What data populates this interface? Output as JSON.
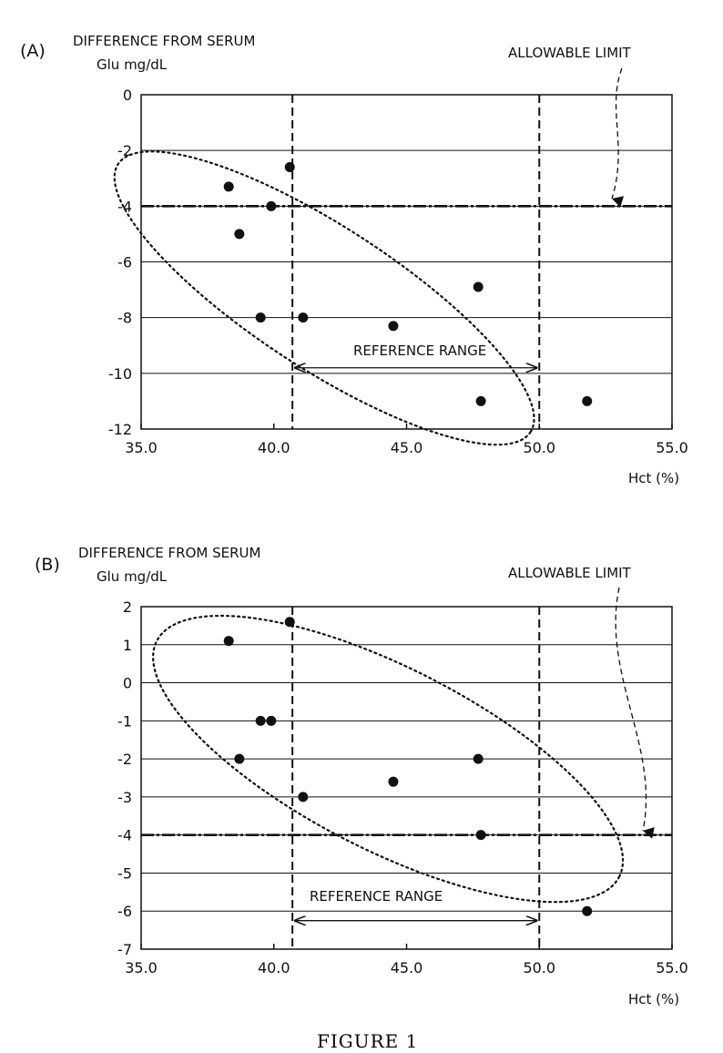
{
  "figure_caption": "FIGURE 1",
  "chart_data": [
    {
      "panel_label": "(A)",
      "type": "scatter",
      "ylabel_line1": "DIFFERENCE FROM SERUM",
      "ylabel_line2": "Glu mg/dL",
      "xlabel": "Hct (%)",
      "xlim": [
        35.0,
        55.0
      ],
      "ylim": [
        -12,
        0
      ],
      "xticks": [
        "35.0",
        "40.0",
        "45.0",
        "50.0",
        "55.0"
      ],
      "xtick_values": [
        35,
        40,
        45,
        50,
        55
      ],
      "yticks": [
        "0",
        "-2",
        "-4",
        "-6",
        "-8",
        "-10",
        "-12"
      ],
      "ytick_values": [
        0,
        -2,
        -4,
        -6,
        -8,
        -10,
        -12
      ],
      "grid_y": true,
      "allowable_limit_label": "ALLOWABLE LIMIT",
      "allowable_limit": -4,
      "reference_range_label": "REFERENCE RANGE",
      "reference_range": [
        40.7,
        50.0
      ],
      "points": [
        {
          "x": 38.3,
          "y": -3.3
        },
        {
          "x": 38.7,
          "y": -5.0
        },
        {
          "x": 39.9,
          "y": -4.0
        },
        {
          "x": 40.6,
          "y": -2.6
        },
        {
          "x": 39.5,
          "y": -8.0
        },
        {
          "x": 41.1,
          "y": -8.0
        },
        {
          "x": 44.5,
          "y": -8.3
        },
        {
          "x": 47.7,
          "y": -6.9
        },
        {
          "x": 47.8,
          "y": -11.0
        },
        {
          "x": 51.8,
          "y": -11.0
        }
      ]
    },
    {
      "panel_label": "(B)",
      "type": "scatter",
      "ylabel_line1": "DIFFERENCE FROM SERUM",
      "ylabel_line2": "Glu mg/dL",
      "xlabel": "Hct (%)",
      "xlim": [
        35.0,
        55.0
      ],
      "ylim": [
        -7,
        2
      ],
      "xticks": [
        "35.0",
        "40.0",
        "45.0",
        "50.0",
        "55.0"
      ],
      "xtick_values": [
        35,
        40,
        45,
        50,
        55
      ],
      "yticks": [
        "2",
        "1",
        "0",
        "-1",
        "-2",
        "-3",
        "-4",
        "-5",
        "-6",
        "-7"
      ],
      "ytick_values": [
        2,
        1,
        0,
        -1,
        -2,
        -3,
        -4,
        -5,
        -6,
        -7
      ],
      "grid_y": true,
      "allowable_limit_label": "ALLOWABLE LIMIT",
      "allowable_limit": -4,
      "reference_range_label": "REFERENCE RANGE",
      "reference_range": [
        40.7,
        50.0
      ],
      "points": [
        {
          "x": 38.3,
          "y": 1.1
        },
        {
          "x": 40.6,
          "y": 1.6
        },
        {
          "x": 39.5,
          "y": -1.0
        },
        {
          "x": 39.9,
          "y": -1.0
        },
        {
          "x": 38.7,
          "y": -2.0
        },
        {
          "x": 41.1,
          "y": -3.0
        },
        {
          "x": 44.5,
          "y": -2.6
        },
        {
          "x": 47.7,
          "y": -2.0
        },
        {
          "x": 47.8,
          "y": -4.0
        },
        {
          "x": 51.8,
          "y": -6.0
        }
      ]
    }
  ]
}
